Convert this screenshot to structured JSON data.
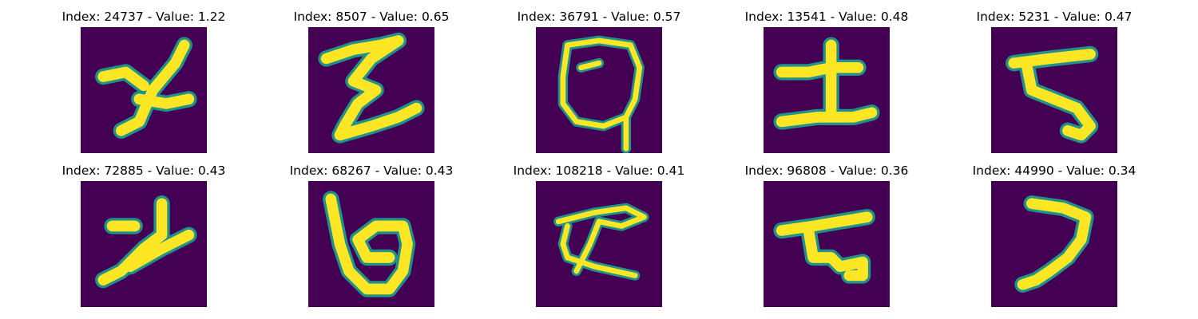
{
  "colors": {
    "background": "#440154",
    "edge": "#21918c",
    "ink": "#fde725"
  },
  "panels": [
    {
      "label": "Index: 24737 - Value: 1.22",
      "index": 24737,
      "value": 1.22
    },
    {
      "label": "Index: 8507 - Value: 0.65",
      "index": 8507,
      "value": 0.65
    },
    {
      "label": "Index: 36791 - Value: 0.57",
      "index": 36791,
      "value": 0.57
    },
    {
      "label": "Index: 13541 - Value: 0.48",
      "index": 13541,
      "value": 0.48
    },
    {
      "label": "Index: 5231 - Value: 0.47",
      "index": 5231,
      "value": 0.47
    },
    {
      "label": "Index: 72885 - Value: 0.43",
      "index": 72885,
      "value": 0.43
    },
    {
      "label": "Index: 68267 - Value: 0.43",
      "index": 68267,
      "value": 0.43
    },
    {
      "label": "Index: 108218 - Value: 0.41",
      "index": 108218,
      "value": 0.41
    },
    {
      "label": "Index: 96808 - Value: 0.36",
      "index": 96808,
      "value": 0.36
    },
    {
      "label": "Index: 44990 - Value: 0.34",
      "index": 44990,
      "value": 0.34
    }
  ]
}
